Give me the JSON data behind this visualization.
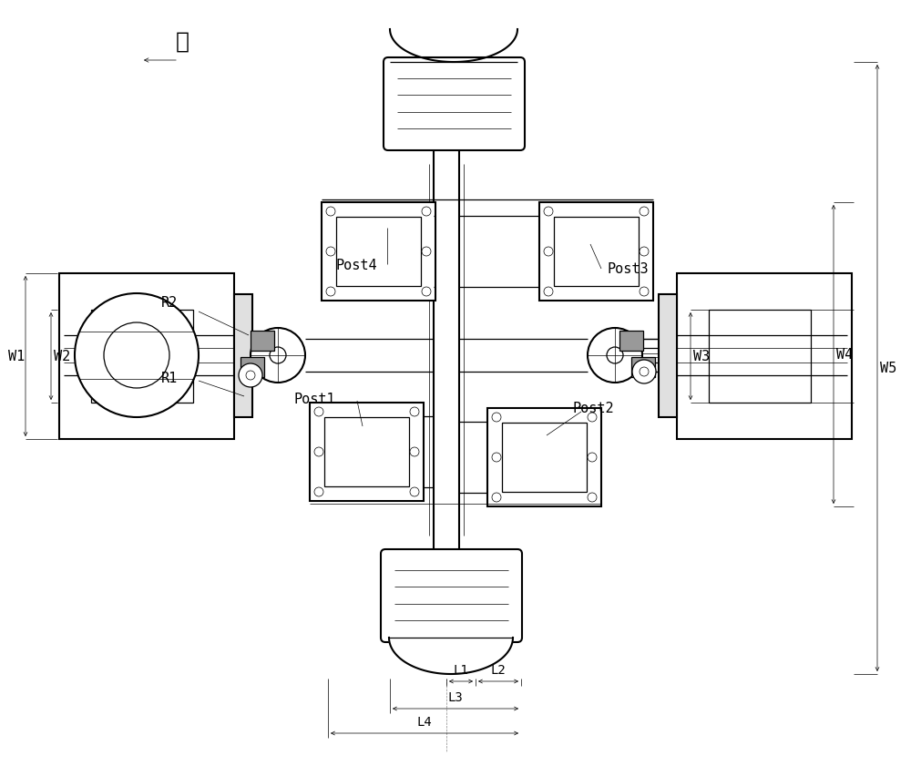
{
  "bg_color": "#ffffff",
  "lc": "#000000",
  "fig_width": 10.0,
  "fig_height": 8.41,
  "dpi": 100,
  "labels": {
    "zhou": "轴",
    "R1": "R1",
    "R2": "R2",
    "Post1": "Post1",
    "Post2": "Post2",
    "Post3": "Post3",
    "Post4": "Post4",
    "W1": "W1",
    "W2": "W2",
    "W3": "W3",
    "W4": "W4",
    "W5": "W5",
    "L1": "L1",
    "L2": "L2",
    "L3": "L3",
    "L4": "L4"
  }
}
